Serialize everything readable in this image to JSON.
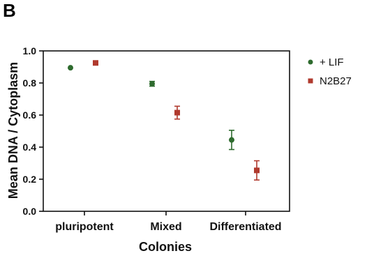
{
  "panel_label": "B",
  "chart_data": {
    "type": "scatter",
    "categories": [
      "pluripotent",
      "Mixed",
      "Differentiated"
    ],
    "xlabel": "Colonies",
    "ylabel": "Mean DNA / Cytoplasm",
    "ylim": [
      0.0,
      1.0
    ],
    "yticks": [
      "0.0",
      "0.2",
      "0.4",
      "0.6",
      "0.8",
      "1.0"
    ],
    "grid": false,
    "legend_position": "right",
    "series": [
      {
        "name": "+ LIF",
        "marker": "circle",
        "color": "#2e6b2e",
        "values": [
          0.895,
          0.795,
          0.445
        ],
        "err": [
          0.0,
          0.015,
          0.06
        ]
      },
      {
        "name": "N2B27",
        "marker": "square",
        "color": "#b03a2e",
        "values": [
          0.925,
          0.615,
          0.255
        ],
        "err": [
          0.0,
          0.04,
          0.06
        ]
      }
    ]
  }
}
